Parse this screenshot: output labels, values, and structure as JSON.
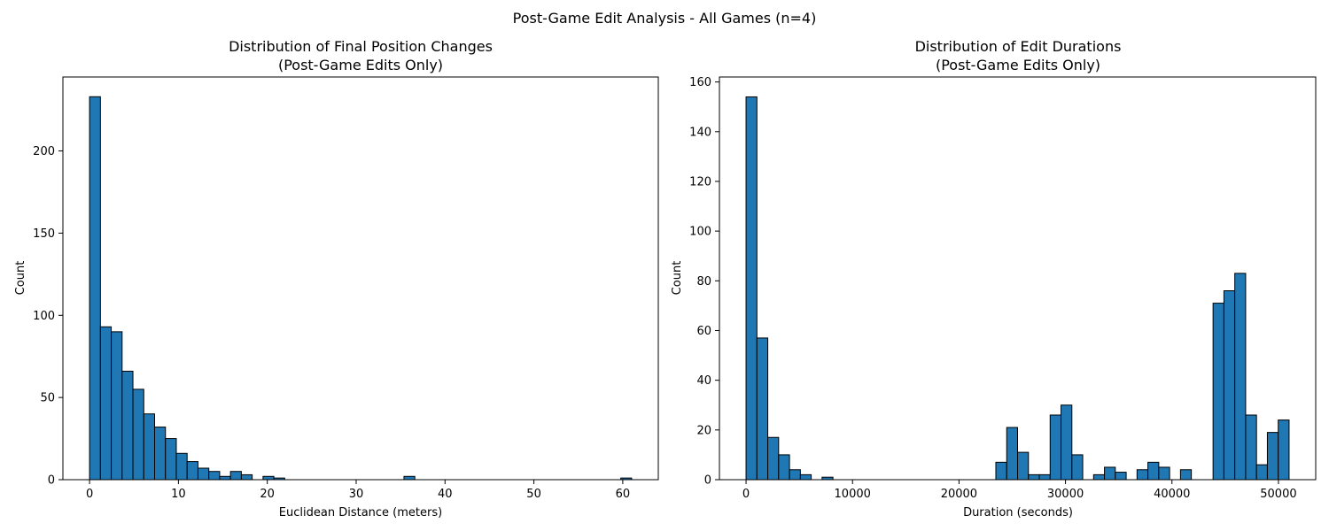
{
  "figure": {
    "suptitle": "Post-Game Edit Analysis - All Games (n=4)"
  },
  "chart_data": [
    {
      "type": "bar",
      "title_line1": "Distribution of Final Position Changes",
      "title_line2": "(Post-Game Edits Only)",
      "xlabel": "Euclidean Distance (meters)",
      "ylabel": "Count",
      "xlim": [
        -3,
        64
      ],
      "ylim": [
        0,
        245
      ],
      "xticks": [
        0,
        10,
        20,
        30,
        40,
        50,
        60
      ],
      "yticks": [
        0,
        50,
        100,
        150,
        200
      ],
      "bar_color": "#1f77b4",
      "bin_start": 0,
      "bin_width": 1.22,
      "counts": [
        233,
        93,
        90,
        66,
        55,
        40,
        32,
        25,
        16,
        11,
        7,
        5,
        2,
        5,
        3,
        0,
        2,
        1,
        0,
        0,
        0,
        0,
        0,
        0,
        0,
        0,
        0,
        0,
        0,
        2,
        0,
        0,
        0,
        0,
        0,
        0,
        0,
        0,
        0,
        0,
        0,
        0,
        0,
        0,
        0,
        0,
        0,
        0,
        0,
        1
      ]
    },
    {
      "type": "bar",
      "title_line1": "Distribution of Edit Durations",
      "title_line2": "(Post-Game Edits Only)",
      "xlabel": "Duration (seconds)",
      "ylabel": "Count",
      "xlim": [
        -2500,
        53500
      ],
      "ylim": [
        0,
        162
      ],
      "xticks": [
        0,
        10000,
        20000,
        30000,
        40000,
        50000
      ],
      "yticks": [
        0,
        20,
        40,
        60,
        80,
        100,
        120,
        140,
        160
      ],
      "bar_color": "#1f77b4",
      "bin_start": 0,
      "bin_width": 1020,
      "counts": [
        154,
        57,
        17,
        10,
        4,
        2,
        0,
        1,
        0,
        0,
        0,
        0,
        0,
        0,
        0,
        0,
        0,
        0,
        0,
        0,
        0,
        0,
        0,
        7,
        21,
        11,
        2,
        2,
        26,
        30,
        10,
        0,
        2,
        5,
        3,
        0,
        4,
        7,
        5,
        0,
        4,
        0,
        0,
        71,
        76,
        83,
        26,
        6,
        19,
        24
      ]
    }
  ]
}
